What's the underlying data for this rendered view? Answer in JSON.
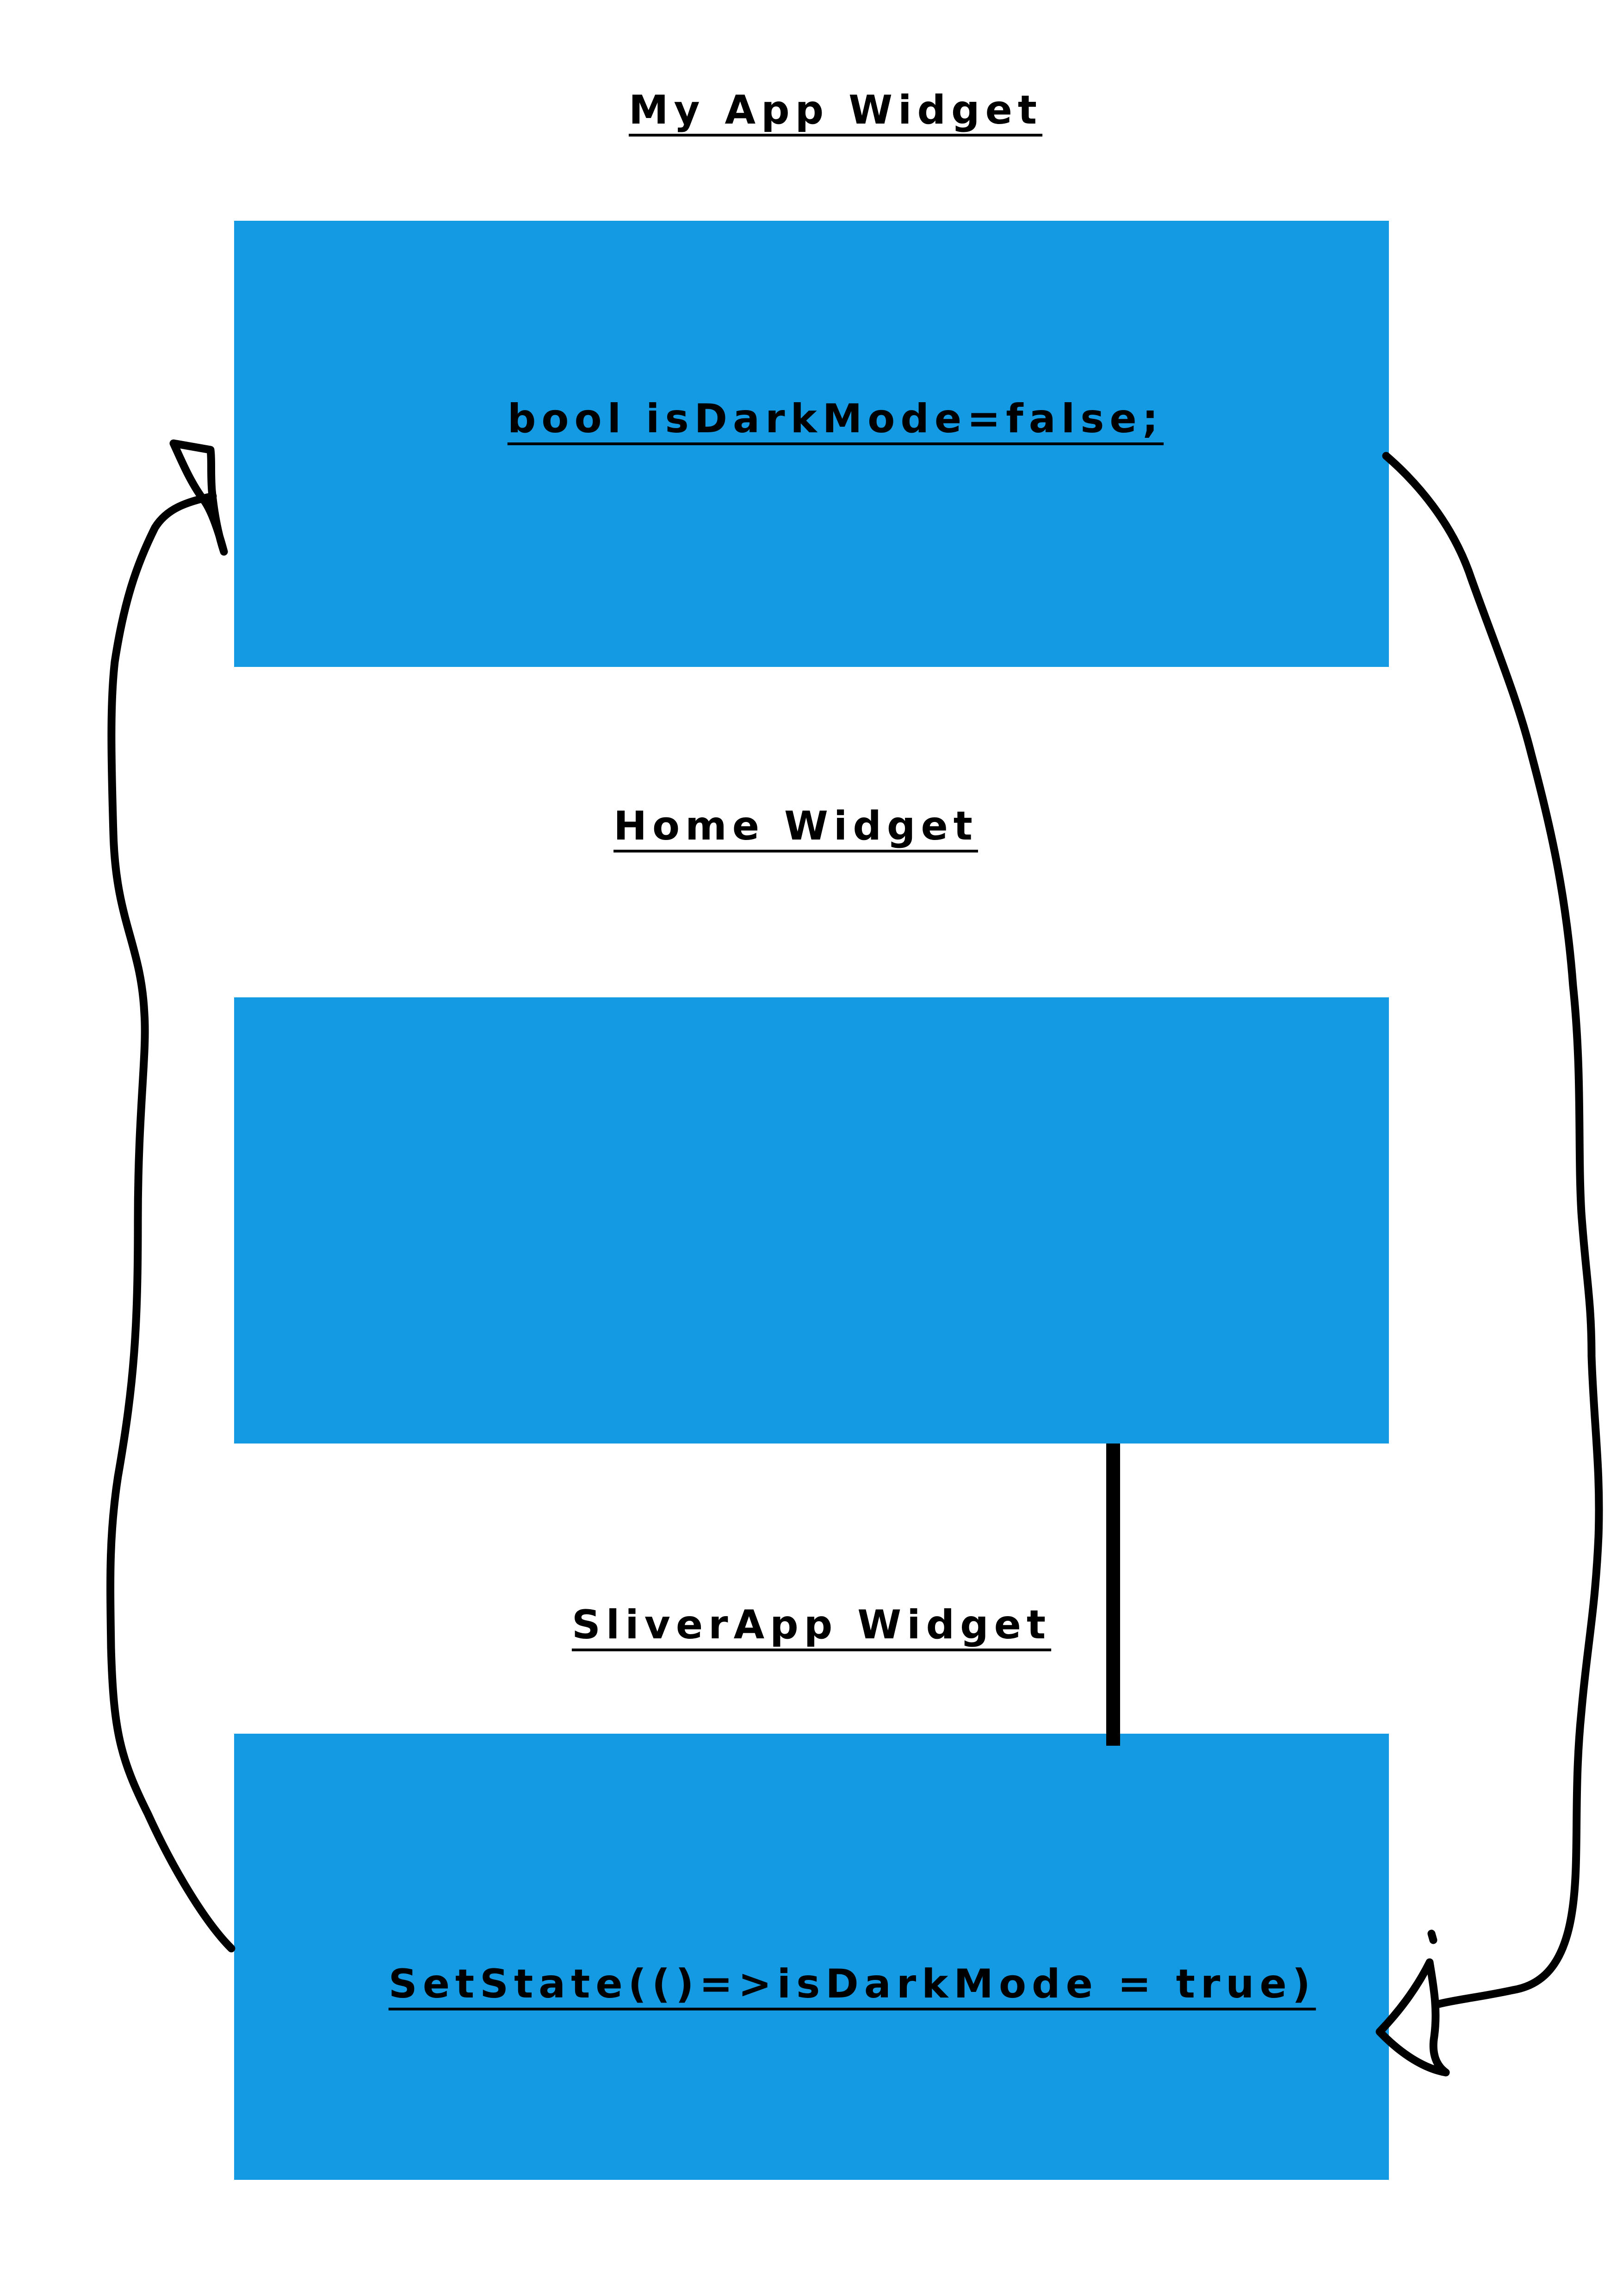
{
  "colors": {
    "box_fill": "#1499e3",
    "ink": "#000000",
    "background": "#ffffff"
  },
  "labels": {
    "my_app": "My App Widget",
    "home": "Home Widget",
    "sliver_app": "SliverApp Widget"
  },
  "boxes": {
    "my_app_box": {
      "text": "bool isDarkMode=false;"
    },
    "home_box": {
      "text": ""
    },
    "sliver_box": {
      "text": "SetState(()=>isDarkMode = true)"
    }
  },
  "connectors": {
    "left_arrow": {
      "icon": "hand-drawn-arrow-up-icon"
    },
    "right_arrow": {
      "icon": "hand-drawn-arrow-down-icon"
    },
    "home_to_sliver_line": {
      "icon": "straight-line"
    }
  }
}
